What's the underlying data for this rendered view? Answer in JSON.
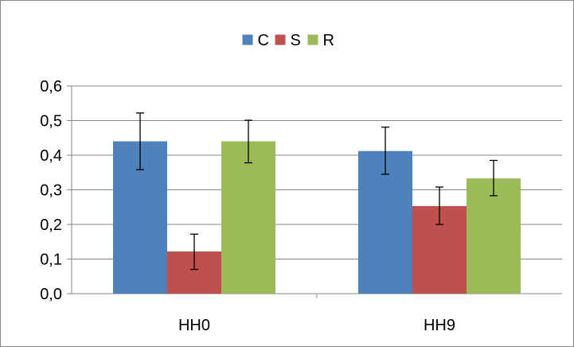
{
  "chart_data": {
    "type": "bar",
    "categories": [
      "HH0",
      "HH9"
    ],
    "series": [
      {
        "name": "C",
        "color": "#4F81BD",
        "values": [
          0.44,
          0.412
        ],
        "error_low": [
          0.358,
          0.345
        ],
        "error_high": [
          0.522,
          0.481
        ]
      },
      {
        "name": "S",
        "color": "#C0504D",
        "values": [
          0.122,
          0.253
        ],
        "error_low": [
          0.07,
          0.2
        ],
        "error_high": [
          0.172,
          0.308
        ]
      },
      {
        "name": "R",
        "color": "#9BBB59",
        "values": [
          0.44,
          0.333
        ],
        "error_low": [
          0.378,
          0.283
        ],
        "error_high": [
          0.501,
          0.385
        ]
      }
    ],
    "ylim": [
      0,
      0.6
    ],
    "yticks": [
      "0,0",
      "0,1",
      "0,2",
      "0,3",
      "0,4",
      "0,5",
      "0,6"
    ],
    "grid": true,
    "legend_position": "top-center",
    "title": "",
    "xlabel": "",
    "ylabel": ""
  }
}
